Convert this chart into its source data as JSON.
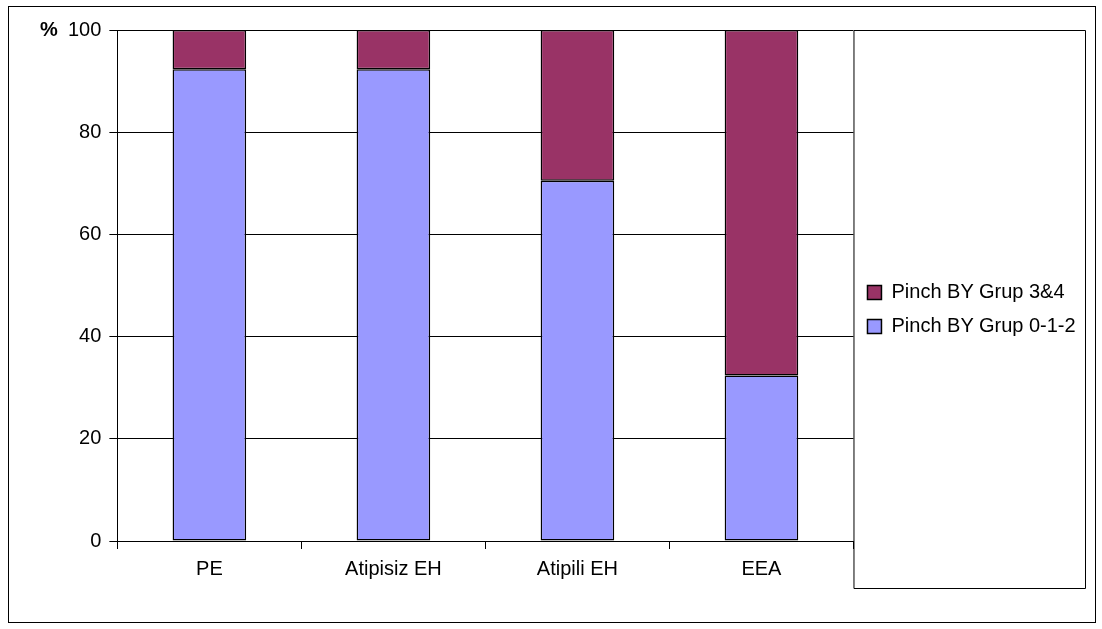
{
  "chart_data": {
    "type": "bar",
    "stacked": true,
    "ylabel": "%",
    "categories": [
      "PE",
      "Atipisiz EH",
      "Atipili EH",
      "EEA"
    ],
    "series": [
      {
        "name": "Pinch BY Grup 0-1-2",
        "color": "#9999ff",
        "values": [
          92.3,
          92.3,
          70.5,
          32.4
        ]
      },
      {
        "name": "Pinch BY Grup 3&4",
        "color": "#993366",
        "values": [
          7.7,
          7.7,
          29.5,
          67.6
        ]
      }
    ],
    "ylim": [
      0,
      100
    ],
    "yticks": [
      0,
      20,
      40,
      60,
      80,
      100
    ],
    "grid": "y",
    "legend": "right"
  }
}
